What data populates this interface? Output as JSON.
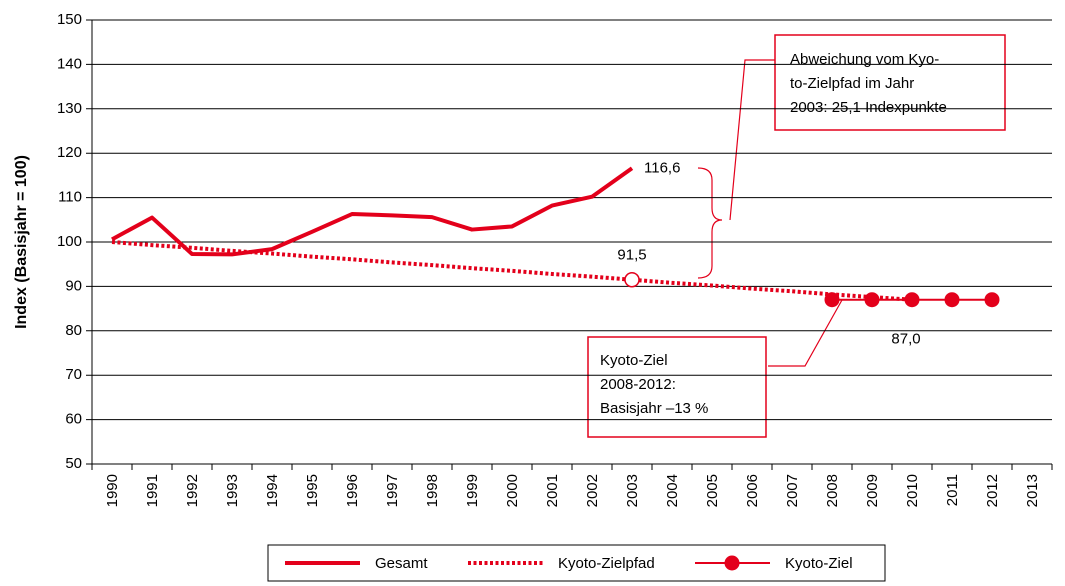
{
  "chart_data": {
    "type": "line",
    "y_label": "Index (Basisjahr = 100)",
    "categories": [
      "1990",
      "1991",
      "1992",
      "1993",
      "1994",
      "1995",
      "1996",
      "1997",
      "1998",
      "1999",
      "2000",
      "2001",
      "2002",
      "2003",
      "2004",
      "2005",
      "2006",
      "2007",
      "2008",
      "2009",
      "2010",
      "2011",
      "2012",
      "2013"
    ],
    "series": [
      {
        "name": "Gesamt",
        "color": "#e3001b",
        "style": "solid",
        "values": [
          100.6,
          105.5,
          97.3,
          97.2,
          98.4,
          102.3,
          106.3,
          106.0,
          105.6,
          102.8,
          103.5,
          108.2,
          110.2,
          116.6,
          null,
          null,
          null,
          null,
          null,
          null,
          null,
          null,
          null,
          null
        ],
        "value_labels": [
          null,
          null,
          null,
          null,
          null,
          null,
          null,
          null,
          null,
          null,
          null,
          null,
          null,
          "116,6",
          null,
          null,
          null,
          null,
          null,
          null,
          null,
          null,
          null,
          null
        ]
      },
      {
        "name": "Kyoto-Zielpfad",
        "color": "#e3001b",
        "style": "dotted",
        "values": [
          100,
          99.3,
          98.7,
          98.0,
          97.4,
          96.7,
          96.1,
          95.4,
          94.8,
          94.1,
          93.5,
          92.8,
          92.2,
          91.5,
          90.8,
          90.2,
          89.5,
          88.9,
          88.2,
          87.6,
          87.0,
          null,
          null,
          null
        ],
        "value_labels": [
          null,
          null,
          null,
          null,
          null,
          null,
          null,
          null,
          null,
          null,
          null,
          null,
          null,
          "91,5",
          null,
          null,
          null,
          null,
          null,
          null,
          null,
          null,
          null,
          null
        ]
      },
      {
        "name": "Kyoto-Ziel",
        "color": "#e3001b",
        "style": "markers",
        "values": [
          null,
          null,
          null,
          null,
          null,
          null,
          null,
          null,
          null,
          null,
          null,
          null,
          null,
          null,
          null,
          null,
          null,
          null,
          87.0,
          87.0,
          87.0,
          87.0,
          87.0,
          null
        ],
        "value_labels": [
          null,
          null,
          null,
          null,
          null,
          null,
          null,
          null,
          null,
          null,
          null,
          null,
          null,
          null,
          null,
          null,
          null,
          null,
          null,
          "87,0",
          null,
          null,
          null,
          null
        ]
      }
    ],
    "ylim": [
      50,
      150
    ],
    "yticks": [
      50,
      60,
      70,
      80,
      90,
      100,
      110,
      120,
      130,
      140,
      150
    ],
    "grid": true,
    "annotations": [
      {
        "lines": [
          "Abweichung vom Kyo-",
          "to-Zielpfad im Jahr",
          "2003: 25,1 Indexpunkte"
        ]
      },
      {
        "lines": [
          "Kyoto-Ziel",
          "2008-2012:",
          "Basisjahr –13 %"
        ]
      }
    ],
    "legend": "bottom"
  }
}
